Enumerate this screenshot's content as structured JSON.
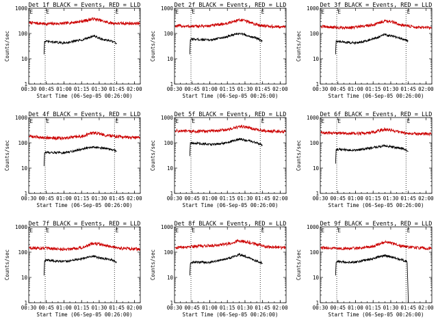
{
  "colors": {
    "events": "#000000",
    "lld": "#cc0000",
    "background": "#ffffff"
  },
  "common": {
    "xlabel": "Start Time (06-Sep-05 00:26:00)",
    "ylabel": "Counts/sec",
    "x_tick_labels": [
      "00:30",
      "00:45",
      "01:00",
      "01:15",
      "01:30",
      "01:45",
      "02:00"
    ],
    "y_tick_labels": [
      "1",
      "10",
      "100",
      "1000"
    ],
    "marker_letter": "E",
    "marker_times_min": [
      44,
      103
    ]
  },
  "chart_data": [
    {
      "type": "line",
      "title": "Det 1f BLACK = Events, RED = LLD",
      "xlabel": "Start Time (06-Sep-05 00:26:00)",
      "ylabel": "Counts/sec",
      "xlim": [
        "00:30",
        "02:05"
      ],
      "ylim": [
        1,
        1000
      ],
      "yscale": "log",
      "series": [
        {
          "name": "LLD",
          "color": "#cc0000",
          "x_min": [
            30,
            45,
            60,
            75,
            85,
            90,
            95,
            100,
            105,
            110,
            125
          ],
          "values": [
            270,
            240,
            250,
            300,
            380,
            340,
            290,
            260,
            250,
            250,
            250
          ]
        },
        {
          "name": "Events",
          "color": "#000000",
          "x_min": [
            43,
            43.5,
            45,
            60,
            75,
            85,
            90,
            95,
            100,
            103,
            105
          ],
          "values": [
            15,
            50,
            48,
            42,
            55,
            80,
            65,
            55,
            50,
            45,
            40
          ]
        }
      ]
    },
    {
      "type": "line",
      "title": "Det 2f BLACK = Events, RED = LLD",
      "xlabel": "Start Time (06-Sep-05 00:26:00)",
      "ylabel": "Counts/sec",
      "xlim": [
        "00:30",
        "02:05"
      ],
      "ylim": [
        1,
        1000
      ],
      "yscale": "log",
      "series": [
        {
          "name": "LLD",
          "color": "#cc0000",
          "x_min": [
            30,
            45,
            60,
            75,
            85,
            90,
            95,
            100,
            105,
            110,
            125
          ],
          "values": [
            200,
            190,
            200,
            250,
            350,
            320,
            270,
            220,
            210,
            190,
            180
          ]
        },
        {
          "name": "Events",
          "color": "#000000",
          "x_min": [
            43,
            43.5,
            45,
            60,
            75,
            85,
            90,
            95,
            100,
            103,
            105
          ],
          "values": [
            15,
            55,
            60,
            55,
            75,
            100,
            90,
            75,
            65,
            55,
            50
          ]
        }
      ]
    },
    {
      "type": "line",
      "title": "Det 3f BLACK = Events, RED = LLD",
      "xlabel": "Start Time (06-Sep-05 00:26:00)",
      "ylabel": "Counts/sec",
      "xlim": [
        "00:30",
        "02:05"
      ],
      "ylim": [
        1,
        1000
      ],
      "yscale": "log",
      "series": [
        {
          "name": "LLD",
          "color": "#cc0000",
          "x_min": [
            30,
            45,
            60,
            75,
            85,
            90,
            95,
            100,
            105,
            110,
            125
          ],
          "values": [
            190,
            170,
            175,
            220,
            320,
            300,
            250,
            210,
            200,
            180,
            160
          ]
        },
        {
          "name": "Events",
          "color": "#000000",
          "x_min": [
            43,
            43.5,
            45,
            60,
            75,
            85,
            90,
            95,
            100,
            103,
            105
          ],
          "values": [
            15,
            50,
            48,
            42,
            60,
            90,
            80,
            70,
            60,
            55,
            50
          ]
        }
      ]
    },
    {
      "type": "line",
      "title": "Det 4f BLACK = Events, RED = LLD",
      "xlabel": "Start Time (06-Sep-05 00:26:00)",
      "ylabel": "Counts/sec",
      "xlim": [
        "00:30",
        "02:05"
      ],
      "ylim": [
        1,
        1000
      ],
      "yscale": "log",
      "series": [
        {
          "name": "LLD",
          "color": "#cc0000",
          "x_min": [
            30,
            45,
            60,
            75,
            85,
            90,
            95,
            100,
            105,
            110,
            125
          ],
          "values": [
            180,
            160,
            150,
            180,
            250,
            230,
            200,
            190,
            180,
            170,
            160
          ]
        },
        {
          "name": "Events",
          "color": "#000000",
          "x_min": [
            43,
            43.5,
            45,
            60,
            75,
            85,
            90,
            95,
            100,
            103,
            105
          ],
          "values": [
            12,
            40,
            42,
            40,
            55,
            70,
            65,
            60,
            55,
            50,
            45
          ]
        }
      ]
    },
    {
      "type": "line",
      "title": "Det 5f BLACK = Events, RED = LLD",
      "xlabel": "Start Time (06-Sep-05 00:26:00)",
      "ylabel": "Counts/sec",
      "xlim": [
        "00:30",
        "02:05"
      ],
      "ylim": [
        1,
        1000
      ],
      "yscale": "log",
      "series": [
        {
          "name": "LLD",
          "color": "#cc0000",
          "x_min": [
            30,
            45,
            60,
            75,
            85,
            90,
            95,
            100,
            105,
            110,
            125
          ],
          "values": [
            300,
            280,
            290,
            330,
            430,
            420,
            380,
            330,
            300,
            290,
            280
          ]
        },
        {
          "name": "Events",
          "color": "#000000",
          "x_min": [
            43,
            43.5,
            45,
            60,
            75,
            85,
            90,
            95,
            100,
            103,
            105
          ],
          "values": [
            30,
            100,
            100,
            85,
            100,
            140,
            130,
            115,
            100,
            90,
            80
          ]
        }
      ]
    },
    {
      "type": "line",
      "title": "Det 6f BLACK = Events, RED = LLD",
      "xlabel": "Start Time (06-Sep-05 00:26:00)",
      "ylabel": "Counts/sec",
      "xlim": [
        "00:30",
        "02:05"
      ],
      "ylim": [
        1,
        1000
      ],
      "yscale": "log",
      "series": [
        {
          "name": "LLD",
          "color": "#cc0000",
          "x_min": [
            30,
            45,
            60,
            75,
            85,
            90,
            95,
            100,
            105,
            110,
            125
          ],
          "values": [
            250,
            240,
            230,
            260,
            340,
            320,
            280,
            250,
            240,
            230,
            220
          ]
        },
        {
          "name": "Events",
          "color": "#000000",
          "x_min": [
            43,
            43.5,
            45,
            60,
            75,
            85,
            90,
            95,
            100,
            103,
            105
          ],
          "values": [
            15,
            55,
            55,
            50,
            65,
            75,
            70,
            65,
            60,
            50,
            45
          ]
        }
      ]
    },
    {
      "type": "line",
      "title": "Det 7f BLACK = Events, RED = LLD",
      "xlabel": "Start Time (06-Sep-05 00:26:00)",
      "ylabel": "Counts/sec",
      "xlim": [
        "00:30",
        "02:05"
      ],
      "ylim": [
        1,
        1000
      ],
      "yscale": "log",
      "series": [
        {
          "name": "LLD",
          "color": "#cc0000",
          "x_min": [
            30,
            45,
            60,
            75,
            85,
            90,
            95,
            100,
            105,
            110,
            125
          ],
          "values": [
            150,
            140,
            130,
            150,
            220,
            210,
            180,
            160,
            150,
            140,
            130
          ]
        },
        {
          "name": "Events",
          "color": "#000000",
          "x_min": [
            43,
            43.5,
            45,
            60,
            75,
            85,
            90,
            95,
            100,
            103,
            105
          ],
          "values": [
            12,
            45,
            48,
            42,
            55,
            70,
            60,
            55,
            50,
            45,
            40
          ]
        }
      ]
    },
    {
      "type": "line",
      "title": "Det 8f BLACK = Events, RED = LLD",
      "xlabel": "Start Time (06-Sep-05 00:26:00)",
      "ylabel": "Counts/sec",
      "xlim": [
        "00:30",
        "02:05"
      ],
      "ylim": [
        1,
        1000
      ],
      "yscale": "log",
      "series": [
        {
          "name": "LLD",
          "color": "#cc0000",
          "x_min": [
            30,
            45,
            60,
            75,
            85,
            90,
            95,
            100,
            105,
            110,
            125
          ],
          "values": [
            150,
            170,
            180,
            210,
            280,
            270,
            230,
            200,
            180,
            160,
            150
          ]
        },
        {
          "name": "Events",
          "color": "#000000",
          "x_min": [
            43,
            43.5,
            45,
            60,
            75,
            85,
            90,
            95,
            100,
            103,
            105
          ],
          "values": [
            12,
            35,
            40,
            40,
            55,
            80,
            70,
            55,
            45,
            40,
            35
          ]
        }
      ]
    },
    {
      "type": "line",
      "title": "Det 9f BLACK = Events, RED = LLD",
      "xlabel": "Start Time (06-Sep-05 00:26:00)",
      "ylabel": "Counts/sec",
      "xlim": [
        "00:30",
        "02:05"
      ],
      "ylim": [
        1,
        1000
      ],
      "yscale": "log",
      "series": [
        {
          "name": "LLD",
          "color": "#cc0000",
          "x_min": [
            30,
            45,
            60,
            75,
            85,
            90,
            95,
            100,
            105,
            110,
            125
          ],
          "values": [
            150,
            140,
            140,
            170,
            250,
            230,
            190,
            170,
            160,
            150,
            140
          ]
        },
        {
          "name": "Events",
          "color": "#000000",
          "x_min": [
            43,
            43.5,
            45,
            60,
            75,
            85,
            90,
            95,
            100,
            104,
            105
          ],
          "values": [
            12,
            40,
            42,
            40,
            55,
            75,
            65,
            55,
            50,
            40,
            1
          ]
        }
      ]
    }
  ]
}
